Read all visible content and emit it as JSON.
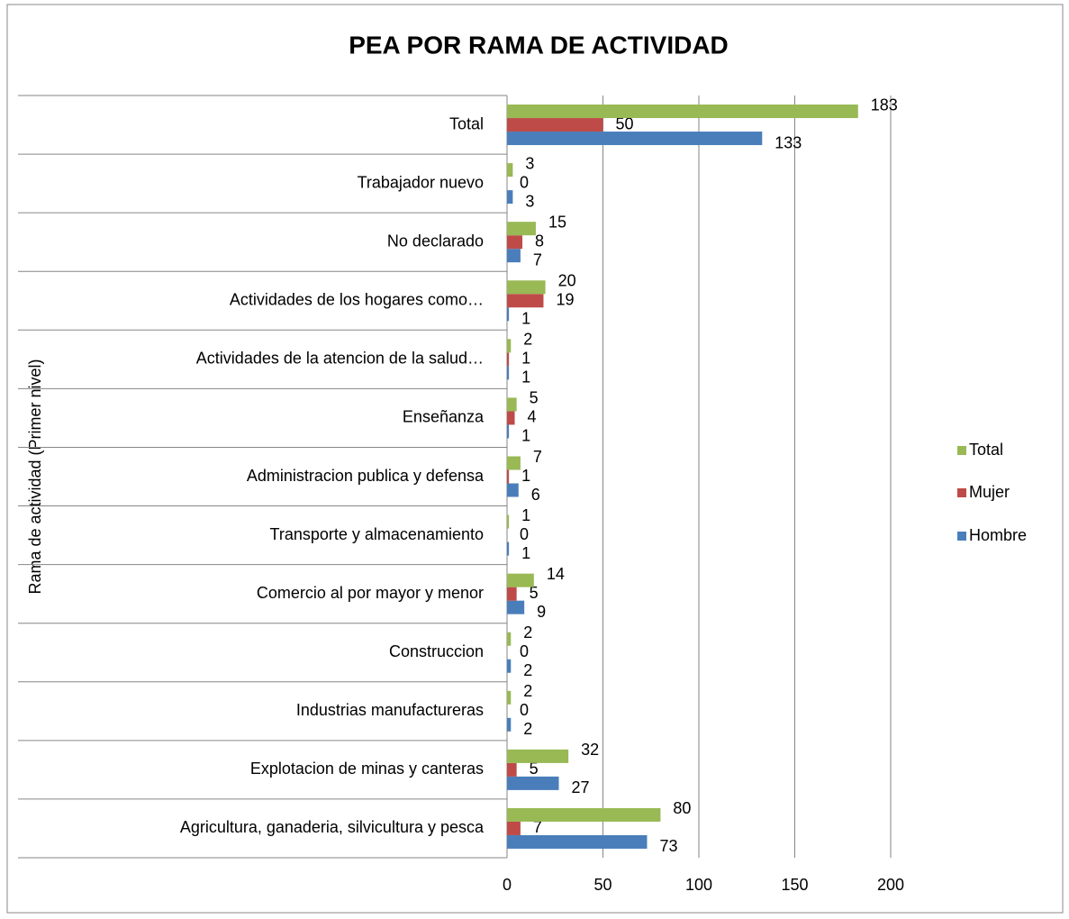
{
  "chart_data": {
    "type": "bar",
    "orientation": "horizontal",
    "title": "PEA POR RAMA DE ACTIVIDAD",
    "y_label": "Rama de actividad (Primer nivel)",
    "categories": [
      "Agricultura, ganaderia, silvicultura y pesca",
      "Explotacion de minas y canteras",
      "Industrias manufactureras",
      "Construccion",
      "Comercio al por mayor y menor",
      "Transporte y almacenamiento",
      "Administracion publica y defensa",
      "Enseñanza",
      "Actividades de la atencion de la salud…",
      "Actividades de los hogares como…",
      "No declarado",
      "Trabajador nuevo",
      "Total"
    ],
    "series": [
      {
        "name": "Hombre",
        "color": "#4a7ebb",
        "values": [
          73,
          27,
          2,
          2,
          9,
          1,
          6,
          1,
          1,
          1,
          7,
          3,
          133
        ]
      },
      {
        "name": "Mujer",
        "color": "#be4b48",
        "values": [
          7,
          5,
          0,
          0,
          5,
          0,
          1,
          4,
          1,
          19,
          8,
          0,
          50
        ]
      },
      {
        "name": "Total",
        "color": "#98b954",
        "values": [
          80,
          32,
          2,
          2,
          14,
          1,
          7,
          5,
          2,
          20,
          15,
          3,
          183
        ]
      }
    ],
    "xlim": [
      0,
      200
    ],
    "xticks": [
      0,
      50,
      100,
      150,
      200
    ],
    "grid": true,
    "legend": "right"
  }
}
